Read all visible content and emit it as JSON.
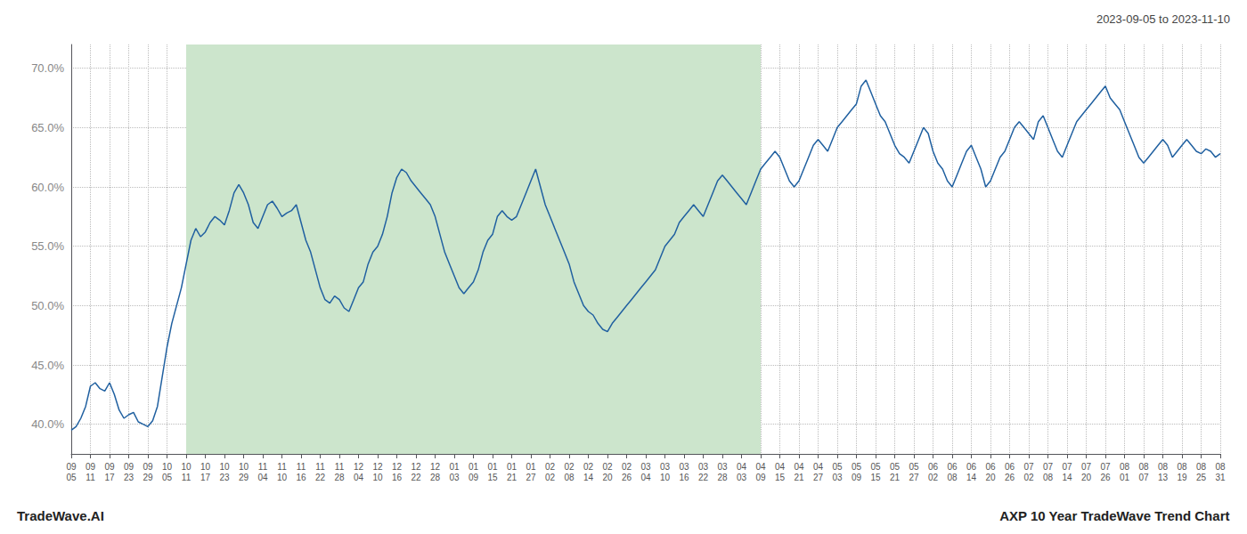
{
  "chart_data": {
    "type": "line",
    "annotations": [
      "2023-09-05 to 2023-11-10",
      "TradeWave.AI",
      "AXP 10 Year TradeWave Trend Chart"
    ],
    "color": "#2060a0",
    "grid": true,
    "ylim": [
      37.5,
      72.0
    ],
    "yticks": [
      {
        "value": 40.0,
        "label": "40.0%"
      },
      {
        "value": 45.0,
        "label": "45.0%"
      },
      {
        "value": 50.0,
        "label": "50.0%"
      },
      {
        "value": 55.0,
        "label": "55.0%"
      },
      {
        "value": 60.0,
        "label": "60.0%"
      },
      {
        "value": 65.0,
        "label": "65.0%"
      },
      {
        "value": 70.0,
        "label": "70.0%"
      }
    ],
    "shaded_region": {
      "from": "10\n11",
      "to": "04\n09",
      "color": "#cce5cc"
    },
    "categories": [
      "09\n05",
      null,
      null,
      null,
      "09\n11",
      null,
      null,
      null,
      "09\n17",
      null,
      null,
      null,
      "09\n23",
      null,
      null,
      null,
      "09\n29",
      null,
      null,
      null,
      "10\n05",
      null,
      null,
      null,
      "10\n11",
      null,
      null,
      null,
      "10\n17",
      null,
      null,
      null,
      "10\n23",
      null,
      null,
      null,
      "10\n29",
      null,
      null,
      null,
      "11\n04",
      null,
      null,
      null,
      "11\n10",
      null,
      null,
      null,
      "11\n16",
      null,
      null,
      null,
      "11\n22",
      null,
      null,
      null,
      "11\n28",
      null,
      null,
      null,
      "12\n04",
      null,
      null,
      null,
      "12\n10",
      null,
      null,
      null,
      "12\n16",
      null,
      null,
      null,
      "12\n22",
      null,
      null,
      null,
      "12\n28",
      null,
      null,
      null,
      "01\n03",
      null,
      null,
      null,
      "01\n09",
      null,
      null,
      null,
      "01\n15",
      null,
      null,
      null,
      "01\n21",
      null,
      null,
      null,
      "01\n27",
      null,
      null,
      null,
      "02\n02",
      null,
      null,
      null,
      "02\n08",
      null,
      null,
      null,
      "02\n14",
      null,
      null,
      null,
      "02\n20",
      null,
      null,
      null,
      "02\n26",
      null,
      null,
      null,
      "03\n04",
      null,
      null,
      null,
      "03\n10",
      null,
      null,
      null,
      "03\n16",
      null,
      null,
      null,
      "03\n22",
      null,
      null,
      null,
      "03\n28",
      null,
      null,
      null,
      "04\n03",
      null,
      null,
      null,
      "04\n09",
      null,
      null,
      null,
      "04\n15",
      null,
      null,
      null,
      "04\n21",
      null,
      null,
      null,
      "04\n27",
      null,
      null,
      null,
      "05\n03",
      null,
      null,
      null,
      "05\n09",
      null,
      null,
      null,
      "05\n15",
      null,
      null,
      null,
      "05\n21",
      null,
      null,
      null,
      "05\n27",
      null,
      null,
      null,
      "06\n02",
      null,
      null,
      null,
      "06\n08",
      null,
      null,
      null,
      "06\n14",
      null,
      null,
      null,
      "06\n20",
      null,
      null,
      null,
      "06\n26",
      null,
      null,
      null,
      "07\n02",
      null,
      null,
      null,
      "07\n08",
      null,
      null,
      null,
      "07\n14",
      null,
      null,
      null,
      "07\n20",
      null,
      null,
      null,
      "07\n26",
      null,
      null,
      null,
      "08\n01",
      null,
      null,
      null,
      "08\n07",
      null,
      null,
      null,
      "08\n13",
      null,
      null,
      null,
      "08\n19",
      null,
      null,
      null,
      "08\n25",
      null,
      null,
      null,
      "08\n31"
    ],
    "values": [
      39.5,
      39.8,
      40.5,
      41.5,
      43.2,
      43.5,
      43.0,
      42.8,
      43.5,
      42.5,
      41.2,
      40.5,
      40.8,
      41.0,
      40.2,
      40.0,
      39.8,
      40.3,
      41.5,
      44.0,
      46.5,
      48.5,
      50.0,
      51.5,
      53.5,
      55.5,
      56.5,
      55.8,
      56.2,
      57.0,
      57.5,
      57.2,
      56.8,
      58.0,
      59.5,
      60.2,
      59.5,
      58.5,
      57.0,
      56.5,
      57.5,
      58.5,
      58.8,
      58.2,
      57.5,
      57.8,
      58.0,
      58.5,
      57.0,
      55.5,
      54.5,
      53.0,
      51.5,
      50.5,
      50.2,
      50.8,
      50.5,
      49.8,
      49.5,
      50.5,
      51.5,
      52.0,
      53.5,
      54.5,
      55.0,
      56.0,
      57.5,
      59.5,
      60.8,
      61.5,
      61.2,
      60.5,
      60.0,
      59.5,
      59.0,
      58.5,
      57.5,
      56.0,
      54.5,
      53.5,
      52.5,
      51.5,
      51.0,
      51.5,
      52.0,
      53.0,
      54.5,
      55.5,
      56.0,
      57.5,
      58.0,
      57.5,
      57.2,
      57.5,
      58.5,
      59.5,
      60.5,
      61.5,
      60.0,
      58.5,
      57.5,
      56.5,
      55.5,
      54.5,
      53.5,
      52.0,
      51.0,
      50.0,
      49.5,
      49.2,
      48.5,
      48.0,
      47.8,
      48.5,
      49.0,
      49.5,
      50.0,
      50.5,
      51.0,
      51.5,
      52.0,
      52.5,
      53.0,
      54.0,
      55.0,
      55.5,
      56.0,
      57.0,
      57.5,
      58.0,
      58.5,
      58.0,
      57.5,
      58.5,
      59.5,
      60.5,
      61.0,
      60.5,
      60.0,
      59.5,
      59.0,
      58.5,
      59.5,
      60.5,
      61.5,
      62.0,
      62.5,
      63.0,
      62.5,
      61.5,
      60.5,
      60.0,
      60.5,
      61.5,
      62.5,
      63.5,
      64.0,
      63.5,
      63.0,
      64.0,
      65.0,
      65.5,
      66.0,
      66.5,
      67.0,
      68.5,
      69.0,
      68.0,
      67.0,
      66.0,
      65.5,
      64.5,
      63.5,
      62.8,
      62.5,
      62.0,
      63.0,
      64.0,
      65.0,
      64.5,
      63.0,
      62.0,
      61.5,
      60.5,
      60.0,
      61.0,
      62.0,
      63.0,
      63.5,
      62.5,
      61.5,
      60.0,
      60.5,
      61.5,
      62.5,
      63.0,
      64.0,
      65.0,
      65.5,
      65.0,
      64.5,
      64.0,
      65.5,
      66.0,
      65.0,
      64.0,
      63.0,
      62.5,
      63.5,
      64.5,
      65.5,
      66.0,
      66.5,
      67.0,
      67.5,
      68.0,
      68.5,
      67.5,
      67.0,
      66.5,
      65.5,
      64.5,
      63.5,
      62.5,
      62.0,
      62.5,
      63.0,
      63.5,
      64.0,
      63.5,
      62.5,
      63.0,
      63.5,
      64.0,
      63.5,
      63.0,
      62.8,
      63.2,
      63.0,
      62.5,
      62.8
    ]
  }
}
